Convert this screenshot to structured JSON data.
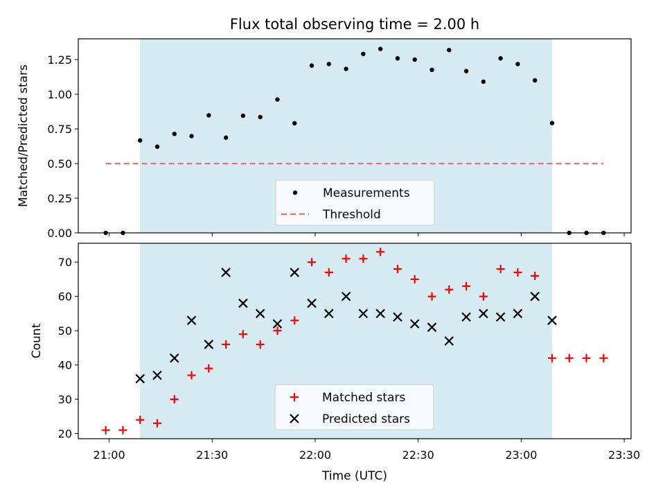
{
  "chart_data": [
    {
      "type": "scatter",
      "title": "Flux total observing time = 2.00 h",
      "xlabel": "",
      "ylabel": "Matched/Predicted stars",
      "xlim": [
        "20:51",
        "23:32"
      ],
      "ylim": [
        0,
        1.4
      ],
      "yticks": [
        0.0,
        0.25,
        0.5,
        0.75,
        1.0,
        1.25
      ],
      "ytick_labels": [
        "0.00",
        "0.25",
        "0.50",
        "0.75",
        "1.00",
        "1.25"
      ],
      "shaded_span": [
        "21:09",
        "23:09"
      ],
      "shaded_color": "#add8e6",
      "legend_position": "lower center",
      "series": [
        {
          "name": "Measurements",
          "marker": "dot",
          "color": "#000000",
          "x": [
            "20:59",
            "21:04",
            "21:09",
            "21:14",
            "21:19",
            "21:24",
            "21:29",
            "21:34",
            "21:39",
            "21:44",
            "21:49",
            "21:54",
            "21:59",
            "22:04",
            "22:09",
            "22:14",
            "22:19",
            "22:24",
            "22:29",
            "22:34",
            "22:39",
            "22:44",
            "22:49",
            "22:54",
            "22:59",
            "23:04",
            "23:09",
            "23:14",
            "23:19",
            "23:24"
          ],
          "y": [
            0.0,
            0.0,
            0.667,
            0.622,
            0.714,
            0.698,
            0.848,
            0.687,
            0.845,
            0.836,
            0.962,
            0.791,
            1.207,
            1.218,
            1.183,
            1.291,
            1.327,
            1.259,
            1.25,
            1.176,
            1.319,
            1.167,
            1.091,
            1.259,
            1.218,
            1.1,
            0.792,
            0.0,
            0.0,
            0.0
          ]
        },
        {
          "name": "Threshold",
          "style": "dashed",
          "color": "#f07070",
          "x": [
            "20:59",
            "23:24"
          ],
          "y": [
            0.5,
            0.5
          ]
        }
      ]
    },
    {
      "type": "scatter",
      "xlabel": "Time (UTC)",
      "ylabel": "Count",
      "xlim": [
        "20:51",
        "23:32"
      ],
      "ylim": [
        18.5,
        75.5
      ],
      "yticks": [
        20,
        30,
        40,
        50,
        60,
        70
      ],
      "xticks": [
        "21:00",
        "21:30",
        "22:00",
        "22:30",
        "23:00",
        "23:30"
      ],
      "shaded_span": [
        "21:09",
        "23:09"
      ],
      "shaded_color": "#add8e6",
      "legend_position": "lower center",
      "series": [
        {
          "name": "Matched stars",
          "marker": "plus",
          "color": "#ff0000",
          "x": [
            "20:59",
            "21:04",
            "21:09",
            "21:14",
            "21:19",
            "21:24",
            "21:29",
            "21:34",
            "21:39",
            "21:44",
            "21:49",
            "21:54",
            "21:59",
            "22:04",
            "22:09",
            "22:14",
            "22:19",
            "22:24",
            "22:29",
            "22:34",
            "22:39",
            "22:44",
            "22:49",
            "22:54",
            "22:59",
            "23:04",
            "23:09",
            "23:14",
            "23:19",
            "23:24"
          ],
          "y": [
            21,
            21,
            24,
            23,
            30,
            37,
            39,
            46,
            49,
            46,
            50,
            53,
            70,
            67,
            71,
            71,
            73,
            68,
            65,
            60,
            62,
            63,
            60,
            68,
            67,
            66,
            42,
            42,
            42,
            42
          ]
        },
        {
          "name": "Predicted stars",
          "marker": "x",
          "color": "#000000",
          "x": [
            "21:09",
            "21:14",
            "21:19",
            "21:24",
            "21:29",
            "21:34",
            "21:39",
            "21:44",
            "21:49",
            "21:54",
            "21:59",
            "22:04",
            "22:09",
            "22:14",
            "22:19",
            "22:24",
            "22:29",
            "22:34",
            "22:39",
            "22:44",
            "22:49",
            "22:54",
            "22:59",
            "23:04",
            "23:09"
          ],
          "y": [
            36,
            37,
            42,
            53,
            46,
            67,
            58,
            55,
            52,
            67,
            58,
            55,
            60,
            55,
            55,
            54,
            52,
            51,
            47,
            54,
            55,
            54,
            55,
            60,
            53
          ]
        }
      ]
    }
  ]
}
